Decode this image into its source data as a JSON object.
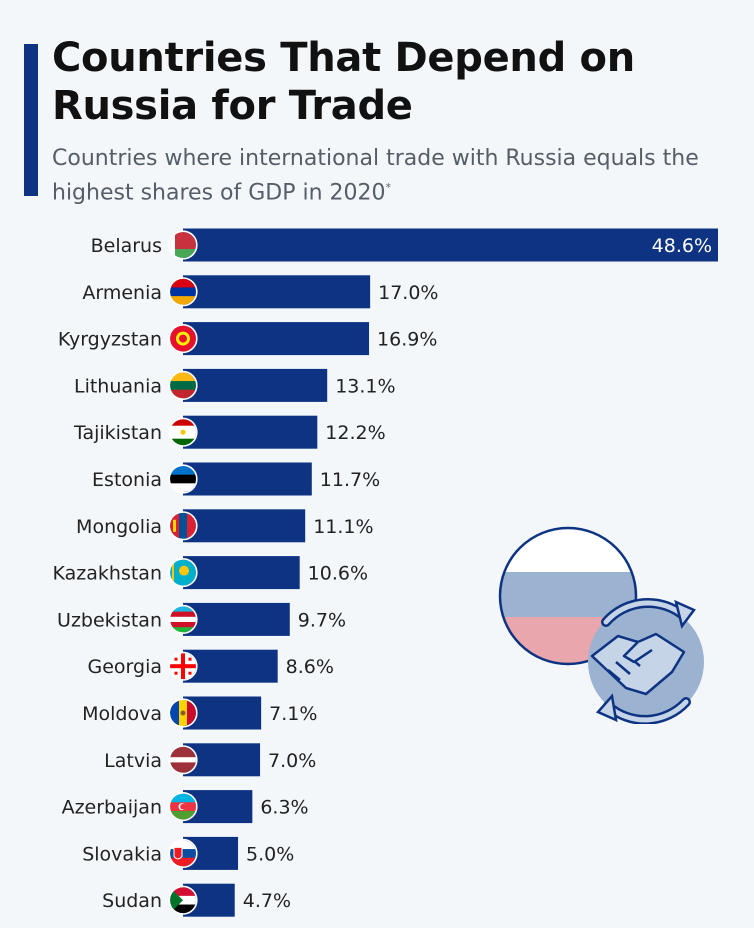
{
  "header": {
    "title": "Countries That Depend on Russia for Trade",
    "subtitle": "Countries where international trade with Russia equals the highest shares of GDP in 2020",
    "subtitle_marker": "*"
  },
  "colors": {
    "bar": "#0d3382",
    "accent": "#0d3382",
    "illustration_white": "#ffffff",
    "illustration_blue": "#9cb2d1",
    "illustration_red": "#e9a6ad"
  },
  "illustration": {
    "icon": "handshake-cycle-icon"
  },
  "chart_data": {
    "type": "bar",
    "orientation": "horizontal",
    "value_unit": "%",
    "xlim": [
      0,
      48.6
    ],
    "grid": false,
    "legend": "none",
    "categories": [
      "Belarus",
      "Armenia",
      "Kyrgyzstan",
      "Lithuania",
      "Tajikistan",
      "Estonia",
      "Mongolia",
      "Kazakhstan",
      "Uzbekistan",
      "Georgia",
      "Moldova",
      "Latvia",
      "Azerbaijan",
      "Slovakia",
      "Sudan"
    ],
    "values": [
      48.6,
      17.0,
      16.9,
      13.1,
      12.2,
      11.7,
      11.1,
      10.6,
      9.7,
      8.6,
      7.1,
      7.0,
      6.3,
      5.0,
      4.7
    ],
    "value_labels": [
      "48.6%",
      "17.0%",
      "16.9%",
      "13.1%",
      "12.2%",
      "11.7%",
      "11.1%",
      "10.6%",
      "9.7%",
      "8.6%",
      "7.1%",
      "7.0%",
      "6.3%",
      "5.0%",
      "4.7%"
    ],
    "flags": [
      "belarus-flag-icon",
      "armenia-flag-icon",
      "kyrgyzstan-flag-icon",
      "lithuania-flag-icon",
      "tajikistan-flag-icon",
      "estonia-flag-icon",
      "mongolia-flag-icon",
      "kazakhstan-flag-icon",
      "uzbekistan-flag-icon",
      "georgia-flag-icon",
      "moldova-flag-icon",
      "latvia-flag-icon",
      "azerbaijan-flag-icon",
      "slovakia-flag-icon",
      "sudan-flag-icon"
    ]
  }
}
